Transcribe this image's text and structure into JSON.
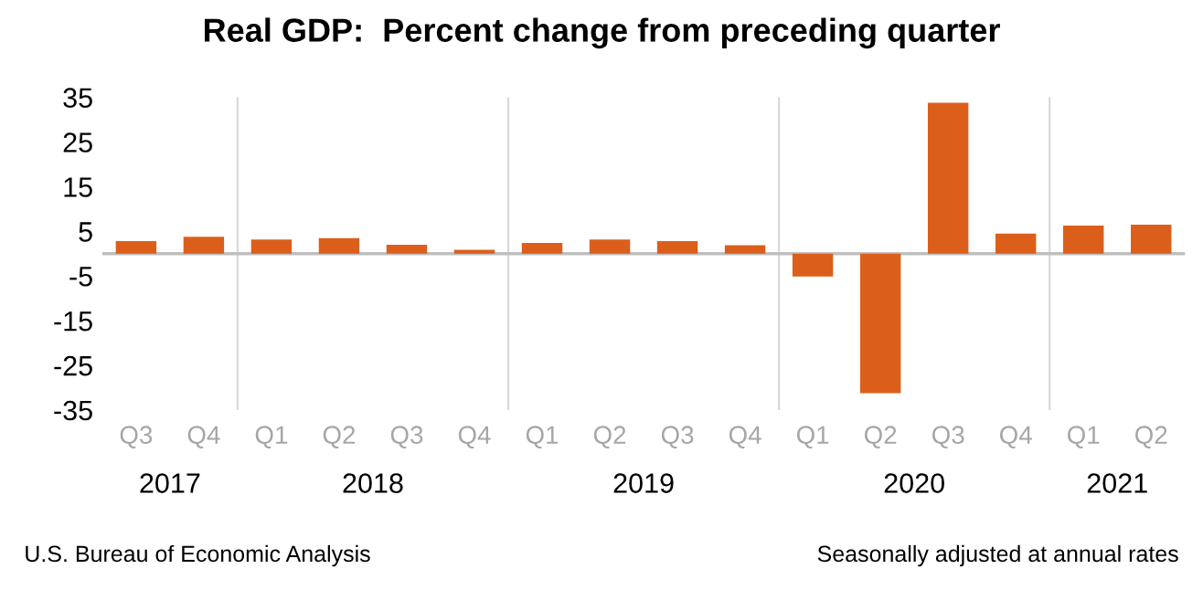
{
  "chart_data": {
    "type": "bar",
    "title": "Real GDP:  Percent change from preceding quarter",
    "categories": [
      "Q3",
      "Q4",
      "Q1",
      "Q2",
      "Q3",
      "Q4",
      "Q1",
      "Q2",
      "Q3",
      "Q4",
      "Q1",
      "Q2",
      "Q3",
      "Q4",
      "Q1",
      "Q2"
    ],
    "values": [
      2.8,
      3.8,
      3.2,
      3.5,
      2.0,
      0.9,
      2.4,
      3.2,
      2.8,
      1.9,
      -5.1,
      -31.2,
      33.8,
      4.5,
      6.3,
      6.5
    ],
    "color": "#db5f1b",
    "ylim": [
      -35,
      35
    ],
    "yticks": [
      -35,
      -25,
      -15,
      -5,
      5,
      15,
      25,
      35
    ],
    "grid": false,
    "annotations": [
      "2017",
      "2018",
      "2019",
      "2020",
      "2021",
      "U.S. Bureau of Economic Analysis",
      "Seasonally adjusted at annual rates"
    ]
  }
}
